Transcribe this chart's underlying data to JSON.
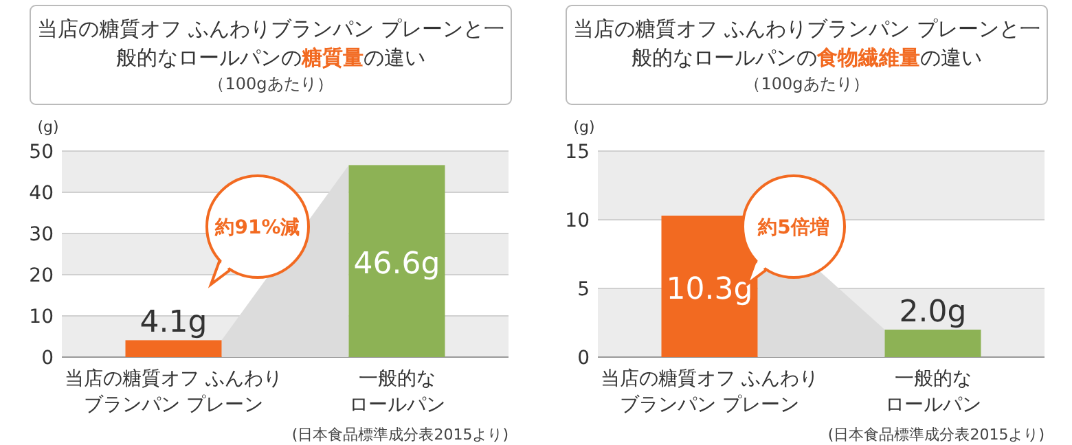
{
  "chart_data": [
    {
      "type": "bar",
      "title": "当店の糖質オフ ふんわりブランパン プレーンと一般的なロールパンの**糖質量**の違い",
      "subtitle": "（100gあたり）",
      "ylabel": "(g)",
      "categories": [
        "当店の糖質オフ ふんわりブランパン プレーン",
        "一般的なロールパン"
      ],
      "values": [
        4.1,
        46.6
      ],
      "colors": [
        "#f26a21",
        "#8db255"
      ],
      "value_labels": [
        "4.1g",
        "46.6g"
      ],
      "ylim": [
        0,
        50
      ],
      "yticks": [
        0,
        10,
        20,
        30,
        40,
        50
      ],
      "grid": "y",
      "annotations": [
        "約91%減",
        "(日本食品標準成分表2015より)"
      ]
    },
    {
      "type": "bar",
      "title": "当店の糖質オフ ふんわりブランパン プレーンと一般的なロールパンの**食物繊維量**の違い",
      "subtitle": "（100gあたり）",
      "ylabel": "(g)",
      "categories": [
        "当店の糖質オフ ふんわりブランパン プレーン",
        "一般的なロールパン"
      ],
      "values": [
        10.3,
        2.0
      ],
      "colors": [
        "#f26a21",
        "#8db255"
      ],
      "value_labels": [
        "10.3g",
        "2.0g"
      ],
      "ylim": [
        0,
        15
      ],
      "yticks": [
        0,
        5,
        10,
        15
      ],
      "grid": "y",
      "annotations": [
        "約5倍増",
        "(日本食品標準成分表2015より)"
      ]
    }
  ]
}
